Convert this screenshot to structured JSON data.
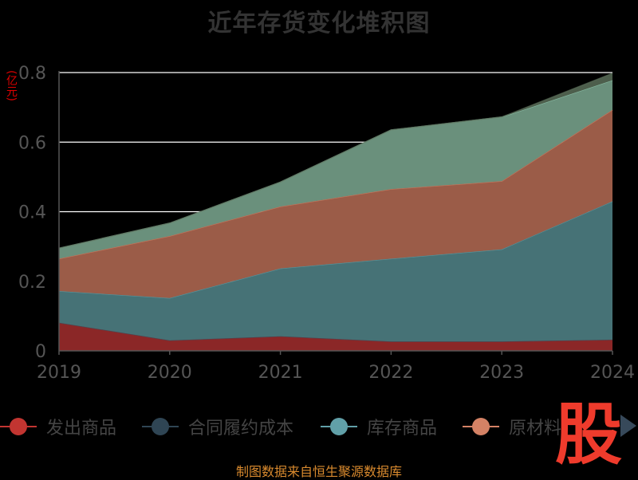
{
  "colors": {
    "background": "#000000",
    "grid": "#ffffff",
    "axis": "#555555",
    "tick_label": "#555555",
    "unit": "#e00000",
    "title": "#333333",
    "source": "#d98a2e",
    "watermark": "#ef3b2c"
  },
  "chart_data": {
    "type": "area",
    "stacked": true,
    "title": "近年存货变化堆积图",
    "ylabel": "(亿元)",
    "x": [
      "2019",
      "2020",
      "2021",
      "2022",
      "2023",
      "2024"
    ],
    "ylim": [
      0,
      0.8
    ],
    "yticks": [
      "0",
      "0.2",
      "0.4",
      "0.6",
      "0.8"
    ],
    "grid": true,
    "legend_position": "bottom",
    "series": [
      {
        "name": "发出商品",
        "color": "#c23531",
        "fill": "#8b2727",
        "values": [
          0.081,
          0.03,
          0.042,
          0.027,
          0.027,
          0.032
        ]
      },
      {
        "name": "合同履约成本",
        "color": "#2f4554",
        "fill": "#2f4554",
        "values": [
          0,
          0,
          0,
          0,
          0,
          0
        ]
      },
      {
        "name": "库存商品",
        "color": "#61a0a8",
        "fill": "#467276",
        "values": [
          0.091,
          0.122,
          0.195,
          0.238,
          0.265,
          0.398
        ]
      },
      {
        "name": "原材料",
        "color": "#d48265",
        "fill": "#9b5c48",
        "values": [
          0.093,
          0.178,
          0.178,
          0.2,
          0.196,
          0.263
        ]
      },
      {
        "name": "",
        "color": "#91c7ae",
        "fill": "#6a907c",
        "values": [
          0.03,
          0.037,
          0.07,
          0.17,
          0.184,
          0.085
        ]
      },
      {
        "name": "",
        "color": "#586b57",
        "fill": "#4d5e4c",
        "values": [
          0,
          0,
          0,
          0,
          0,
          0.02
        ]
      }
    ]
  },
  "legend": {
    "items": [
      {
        "label": "发出商品",
        "color": "#c23531"
      },
      {
        "label": "合同履约成本",
        "color": "#2f4554"
      },
      {
        "label": "库存商品",
        "color": "#61a0a8"
      },
      {
        "label": "原材料",
        "color": "#d48265"
      }
    ]
  },
  "watermark": "股",
  "source_note": "制图数据来自恒生聚源数据库"
}
